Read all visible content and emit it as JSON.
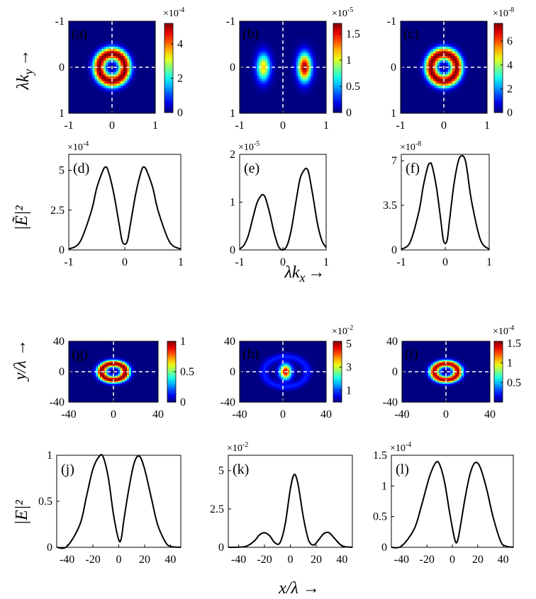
{
  "figure": {
    "ylabel_top": "λk_y →",
    "ylabel_top_parts": {
      "base": "λk",
      "sub": "y",
      "arrow": "→"
    },
    "xlabel_mid": "λk_x →",
    "xlabel_mid_parts": {
      "base": "λk",
      "sub": "x",
      "arrow": "→"
    },
    "ylabel_spec": "|Ẽ|²",
    "ylabel_bottom": "y/λ →",
    "xlabel_bottom": "x/λ →",
    "ylabel_field": "|E|²"
  },
  "colors": {
    "line": "#000000",
    "dash": "#ffffff",
    "jet": [
      "#00007f",
      "#0000ff",
      "#007fff",
      "#00ffff",
      "#7fff7f",
      "#ffff00",
      "#ff7f00",
      "#ff0000",
      "#7f0000"
    ]
  },
  "chart_data": [
    {
      "id": "a",
      "type": "heatmap",
      "tag": "(a)",
      "pattern": "ring",
      "ring_radius": 0.3,
      "ring_width": 0.22,
      "peak": 5.2,
      "xticks": [
        "-1",
        "0",
        "1"
      ],
      "yticks": [
        "-1",
        "0",
        "1"
      ],
      "xlim": [
        -1,
        1
      ],
      "ylim": [
        -1,
        1
      ],
      "colorbar": {
        "ticks": [
          "0",
          "2",
          "4"
        ],
        "tick_values": [
          0,
          2,
          4
        ],
        "range": [
          0,
          5.2
        ],
        "multiplier": "×10",
        "exponent": "-4"
      }
    },
    {
      "id": "b",
      "type": "heatmap",
      "tag": "(b)",
      "pattern": "twolobes",
      "lobe_positions": [
        -0.45,
        0.5
      ],
      "lobe_peaks": [
        1.15,
        1.7
      ],
      "lobe_width": 0.2,
      "peak": 1.7,
      "xticks": [
        "-1",
        "0",
        "1"
      ],
      "yticks": [
        "-1",
        "0",
        "1"
      ],
      "xlim": [
        -1,
        1
      ],
      "ylim": [
        -1,
        1
      ],
      "colorbar": {
        "ticks": [
          "0",
          "0.5",
          "1",
          "1.5"
        ],
        "tick_values": [
          0,
          0.5,
          1,
          1.5
        ],
        "range": [
          0,
          1.7
        ],
        "multiplier": "×10",
        "exponent": "-5"
      }
    },
    {
      "id": "c",
      "type": "heatmap",
      "tag": "(c)",
      "pattern": "ring",
      "ring_radius": 0.3,
      "ring_width": 0.22,
      "peak": 7.5,
      "xticks": [
        "-1",
        "0",
        "1"
      ],
      "yticks": [
        "-1",
        "0",
        "1"
      ],
      "xlim": [
        -1,
        1
      ],
      "ylim": [
        -1,
        1
      ],
      "colorbar": {
        "ticks": [
          "0",
          "2",
          "4",
          "6"
        ],
        "tick_values": [
          0,
          2,
          4,
          6
        ],
        "range": [
          0,
          7.5
        ],
        "multiplier": "×10",
        "exponent": "-8"
      }
    },
    {
      "id": "d",
      "type": "line",
      "tag": "(d)",
      "xlim": [
        -1,
        1
      ],
      "ylim": [
        0,
        6
      ],
      "xticks": [
        "-1",
        "0",
        "1"
      ],
      "xtick_values": [
        -1,
        0,
        1
      ],
      "yticks": [
        "0",
        "2.5",
        "5"
      ],
      "ytick_values": [
        0,
        2.5,
        5
      ],
      "multiplier": "×10",
      "exponent": "-4",
      "x": [
        -1,
        -0.8,
        -0.6,
        -0.5,
        -0.4,
        -0.35,
        -0.3,
        -0.2,
        -0.1,
        -0.05,
        0,
        0.05,
        0.1,
        0.2,
        0.3,
        0.35,
        0.4,
        0.5,
        0.6,
        0.8,
        1
      ],
      "y": [
        0.05,
        0.5,
        2.4,
        3.9,
        4.9,
        5.2,
        5.0,
        3.6,
        1.6,
        0.6,
        0.35,
        0.6,
        1.6,
        3.6,
        5.0,
        5.2,
        4.9,
        3.9,
        2.4,
        0.5,
        0.05
      ]
    },
    {
      "id": "e",
      "type": "line",
      "tag": "(e)",
      "xlim": [
        -1,
        1
      ],
      "ylim": [
        0,
        2
      ],
      "xticks": [
        "-1",
        "0",
        "1"
      ],
      "xtick_values": [
        -1,
        0,
        1
      ],
      "yticks": [
        "0",
        "1",
        "2"
      ],
      "ytick_values": [
        0,
        1,
        2
      ],
      "multiplier": "×10",
      "exponent": "-5",
      "x": [
        -1,
        -0.9,
        -0.8,
        -0.7,
        -0.6,
        -0.5,
        -0.45,
        -0.4,
        -0.3,
        -0.2,
        -0.1,
        0,
        0.1,
        0.2,
        0.3,
        0.4,
        0.5,
        0.55,
        0.6,
        0.7,
        0.8,
        0.9,
        1
      ],
      "y": [
        0.02,
        0.1,
        0.3,
        0.65,
        0.98,
        1.14,
        1.15,
        1.08,
        0.75,
        0.35,
        0.07,
        0,
        0.1,
        0.45,
        1.0,
        1.5,
        1.68,
        1.7,
        1.6,
        1.1,
        0.55,
        0.2,
        0.05
      ]
    },
    {
      "id": "f",
      "type": "line",
      "tag": "(f)",
      "xlim": [
        -1,
        1
      ],
      "ylim": [
        0,
        7.5
      ],
      "xticks": [
        "-1",
        "0",
        "1"
      ],
      "xtick_values": [
        -1,
        0,
        1
      ],
      "yticks": [
        "0",
        "3.5",
        "7"
      ],
      "ytick_values": [
        0,
        3.5,
        7
      ],
      "multiplier": "×10",
      "exponent": "-8",
      "x": [
        -1,
        -0.8,
        -0.6,
        -0.5,
        -0.4,
        -0.35,
        -0.3,
        -0.2,
        -0.1,
        -0.05,
        0,
        0.05,
        0.1,
        0.2,
        0.3,
        0.38,
        0.45,
        0.5,
        0.6,
        0.8,
        1
      ],
      "y": [
        0.05,
        0.6,
        3.0,
        5.0,
        6.5,
        6.8,
        6.6,
        4.9,
        2.3,
        0.9,
        0.5,
        0.9,
        2.4,
        5.2,
        7.0,
        7.4,
        7.1,
        6.2,
        3.8,
        0.8,
        0.05
      ]
    },
    {
      "id": "g",
      "type": "heatmap",
      "tag": "(g)",
      "pattern": "ring",
      "ring_radius": 13,
      "ring_width": 8.5,
      "peak": 1.0,
      "xticks": [
        "-40",
        "0",
        "40"
      ],
      "yticks": [
        "40",
        "0",
        "-40"
      ],
      "xlim": [
        -48,
        48
      ],
      "ylim": [
        -48,
        48
      ],
      "colorbar": {
        "ticks": [
          "0",
          "0.5",
          "1"
        ],
        "tick_values": [
          0,
          0.5,
          1
        ],
        "range": [
          0,
          1
        ],
        "multiplier": "",
        "exponent": ""
      }
    },
    {
      "id": "h",
      "type": "heatmap",
      "tag": "(h)",
      "pattern": "central",
      "center_x": 3,
      "center_width": 5,
      "side_positions": [
        -21,
        27
      ],
      "side_peak": 0.9,
      "peak": 5.0,
      "xticks": [
        "-40",
        "0",
        "40"
      ],
      "yticks": [
        "40",
        "0",
        "-40"
      ],
      "xlim": [
        -48,
        48
      ],
      "ylim": [
        -48,
        48
      ],
      "colorbar": {
        "ticks": [
          "1",
          "3",
          "5"
        ],
        "tick_values": [
          1,
          3,
          5
        ],
        "range": [
          0,
          5.2
        ],
        "multiplier": "×10",
        "exponent": "-2"
      }
    },
    {
      "id": "i",
      "type": "heatmap",
      "tag": "(i)",
      "pattern": "ring",
      "ring_radius": 13,
      "ring_width": 8.5,
      "peak": 1.5,
      "xticks": [
        "-40",
        "0",
        "40"
      ],
      "yticks": [
        "40",
        "0",
        "-40"
      ],
      "xlim": [
        -48,
        48
      ],
      "ylim": [
        -48,
        48
      ],
      "colorbar": {
        "ticks": [
          "0.5",
          "1",
          "1.5"
        ],
        "tick_values": [
          0.5,
          1,
          1.5
        ],
        "range": [
          0,
          1.55
        ],
        "multiplier": "×10",
        "exponent": "-4"
      }
    },
    {
      "id": "j",
      "type": "line",
      "tag": "(j)",
      "xlim": [
        -48,
        48
      ],
      "ylim": [
        0,
        1
      ],
      "xticks": [
        "-40",
        "-20",
        "0",
        "20",
        "40"
      ],
      "xtick_values": [
        -40,
        -20,
        0,
        20,
        40
      ],
      "yticks": [
        "0",
        "0.5",
        "1"
      ],
      "ytick_values": [
        0,
        0.5,
        1
      ],
      "multiplier": "",
      "exponent": "",
      "x": [
        -48,
        -40,
        -30,
        -25,
        -20,
        -15,
        -12,
        -8,
        -4,
        0,
        2,
        4,
        8,
        12,
        16,
        20,
        25,
        30,
        36,
        40,
        48
      ],
      "y": [
        0,
        0.01,
        0.25,
        0.55,
        0.85,
        0.99,
        0.98,
        0.75,
        0.35,
        0.08,
        0.1,
        0.3,
        0.65,
        0.92,
        0.99,
        0.85,
        0.55,
        0.25,
        0.06,
        0.01,
        0
      ]
    },
    {
      "id": "k",
      "type": "line",
      "tag": "(k)",
      "xlim": [
        -48,
        48
      ],
      "ylim": [
        0,
        6
      ],
      "xticks": [
        "-40",
        "-20",
        "0",
        "20",
        "40"
      ],
      "xtick_values": [
        -40,
        -20,
        0,
        20,
        40
      ],
      "yticks": [
        "0",
        "2.5",
        "5"
      ],
      "ytick_values": [
        0,
        2.5,
        5
      ],
      "multiplier": "×10",
      "exponent": "-2",
      "x": [
        -48,
        -35,
        -28,
        -24,
        -20,
        -16,
        -12,
        -8,
        -4,
        0,
        3,
        6,
        10,
        14,
        18,
        22,
        26,
        30,
        34,
        40,
        48
      ],
      "y": [
        0,
        0.05,
        0.4,
        0.8,
        0.95,
        0.75,
        0.3,
        0.3,
        1.5,
        3.8,
        4.75,
        4.1,
        2.0,
        0.5,
        0.15,
        0.5,
        0.9,
        0.95,
        0.6,
        0.1,
        0
      ]
    },
    {
      "id": "l",
      "type": "line",
      "tag": "(l)",
      "xlim": [
        -48,
        48
      ],
      "ylim": [
        0,
        1.5
      ],
      "xticks": [
        "-40",
        "-20",
        "0",
        "20",
        "40"
      ],
      "xtick_values": [
        -40,
        -20,
        0,
        20,
        40
      ],
      "yticks": [
        "0",
        "0.5",
        "1",
        "1.5"
      ],
      "ytick_values": [
        0,
        0.5,
        1,
        1.5
      ],
      "multiplier": "×10",
      "exponent": "-4",
      "x": [
        -48,
        -40,
        -30,
        -24,
        -18,
        -13,
        -10,
        -6,
        -2,
        2,
        4,
        6,
        10,
        14,
        18,
        22,
        27,
        32,
        38,
        42,
        48
      ],
      "y": [
        0,
        0.02,
        0.3,
        0.7,
        1.15,
        1.38,
        1.35,
        1.05,
        0.55,
        0.12,
        0.1,
        0.3,
        0.8,
        1.2,
        1.38,
        1.3,
        0.95,
        0.5,
        0.1,
        0.02,
        0
      ]
    }
  ]
}
